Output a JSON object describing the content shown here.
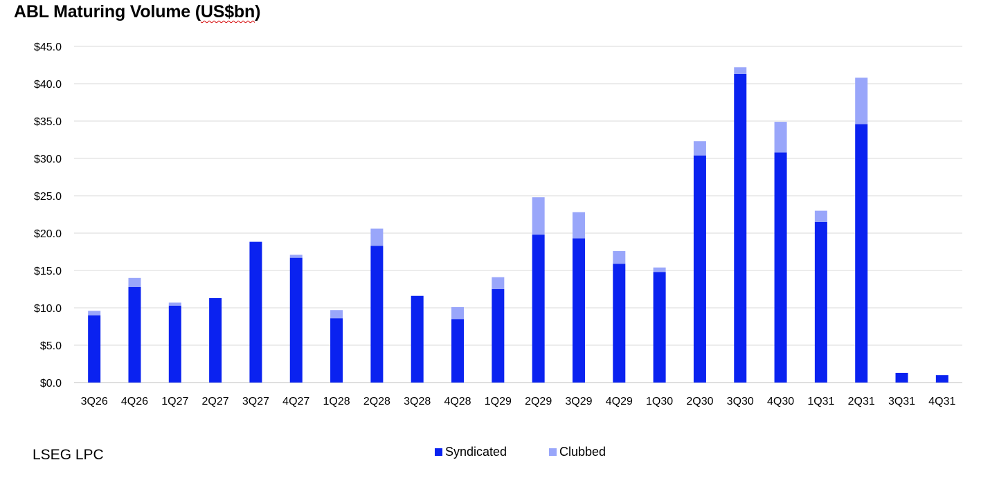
{
  "header": {
    "title_prefix": "ABL Maturing Volume (",
    "title_mid": "US$bn",
    "title_suffix": ")"
  },
  "footer": {
    "source": "LSEG LPC"
  },
  "colors": {
    "syndicated": "#0a22f0",
    "clubbed": "#99a6fa",
    "grid": "#d9d9d9"
  },
  "chart_data": {
    "type": "bar",
    "stacked": true,
    "title": "ABL Maturing Volume (US$bn)",
    "categories": [
      "3Q26",
      "4Q26",
      "1Q27",
      "2Q27",
      "3Q27",
      "4Q27",
      "1Q28",
      "2Q28",
      "3Q28",
      "4Q28",
      "1Q29",
      "2Q29",
      "3Q29",
      "4Q29",
      "1Q30",
      "2Q30",
      "3Q30",
      "4Q30",
      "1Q31",
      "2Q31",
      "3Q31",
      "4Q31"
    ],
    "series": [
      {
        "name": "Syndicated",
        "values": [
          9.0,
          12.8,
          10.3,
          11.3,
          18.8,
          16.7,
          8.6,
          18.3,
          11.6,
          8.5,
          12.5,
          19.8,
          19.3,
          15.9,
          14.8,
          30.4,
          41.3,
          30.8,
          21.5,
          34.6,
          1.3,
          1.0
        ]
      },
      {
        "name": "Clubbed",
        "values": [
          0.6,
          1.2,
          0.4,
          0.0,
          0.1,
          0.4,
          1.1,
          2.3,
          0.0,
          1.6,
          1.6,
          5.0,
          3.5,
          1.7,
          0.6,
          1.9,
          0.9,
          4.1,
          1.5,
          6.2,
          0.0,
          0.0
        ]
      }
    ],
    "ylim": [
      0,
      45
    ],
    "yticks": [
      0,
      5,
      10,
      15,
      20,
      25,
      30,
      35,
      40,
      45
    ],
    "ytick_labels": [
      "$0.0",
      "$5.0",
      "$10.0",
      "$15.0",
      "$20.0",
      "$25.0",
      "$30.0",
      "$35.0",
      "$40.0",
      "$45.0"
    ],
    "grid": true,
    "legend_position": "bottom-center",
    "xlabel": "",
    "ylabel": ""
  }
}
